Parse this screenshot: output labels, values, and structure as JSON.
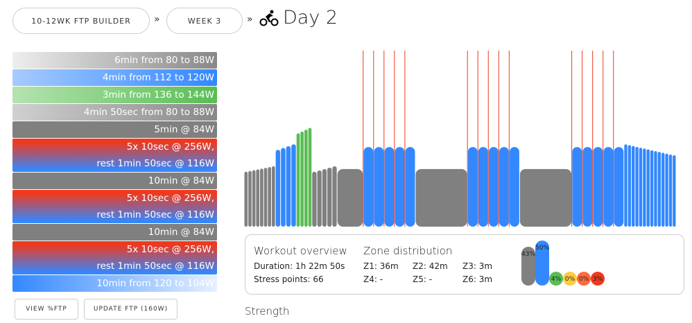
{
  "breadcrumb": {
    "plan": "10-12WK FTP BUILDER",
    "week": "WEEK 3",
    "separator": "»",
    "day": "Day 2"
  },
  "intervals": [
    {
      "lines": [
        "6min from 80 to 88W"
      ],
      "bg": "linear-gradient(90deg,#eeeeee,#888888)"
    },
    {
      "lines": [
        "4min from 112 to 120W"
      ],
      "bg": "linear-gradient(90deg,#a6cbff,#3388ff)"
    },
    {
      "lines": [
        "3min from 136 to 144W"
      ],
      "bg": "linear-gradient(90deg,#b4e3b0,#59bd54)"
    },
    {
      "lines": [
        "4min 50sec from 80 to 88W"
      ],
      "bg": "linear-gradient(90deg,#d0d0d0,#888888)"
    },
    {
      "lines": [
        "5min @ 84W"
      ],
      "bg": "#808080"
    },
    {
      "lines": [
        "5x 10sec @ 256W,",
        "rest 1min 50sec @ 116W"
      ],
      "bg": "linear-gradient(180deg,#f0391c 10%,#3388ff 95%)"
    },
    {
      "lines": [
        "10min @ 84W"
      ],
      "bg": "#808080"
    },
    {
      "lines": [
        "5x 10sec @ 256W,",
        "rest 1min 50sec @ 116W"
      ],
      "bg": "linear-gradient(180deg,#f0391c 10%,#3388ff 95%)"
    },
    {
      "lines": [
        "10min @ 84W"
      ],
      "bg": "#808080"
    },
    {
      "lines": [
        "5x 10sec @ 256W,",
        "rest 1min 50sec @ 116W"
      ],
      "bg": "linear-gradient(180deg,#f0391c 10%,#3388ff 95%)"
    },
    {
      "lines": [
        "10min from 120 to 104W"
      ],
      "bg": "linear-gradient(90deg,#3388ff,#e6f0ff)"
    }
  ],
  "buttons": {
    "view": "VIEW %FTP",
    "update": "UPDATE FTP (160W)"
  },
  "overview": {
    "title": "Workout overview",
    "duration": "Duration: 1h 22m 50s",
    "stress": "Stress points: 66"
  },
  "zones": {
    "title": "Zone distribution",
    "items": [
      "Z1: 36m",
      "Z2: 42m",
      "Z3: 3m",
      "Z4: -",
      "Z5: -",
      "Z6: 3m"
    ],
    "pct": [
      {
        "label": "43%",
        "value": 43,
        "color": "#808080"
      },
      {
        "label": "50%",
        "value": 50,
        "color": "#3388ff"
      },
      {
        "label": "4%",
        "value": 4,
        "color": "#59bd54"
      },
      {
        "label": "0%",
        "value": 0,
        "color": "#ffcc3f"
      },
      {
        "label": "0%",
        "value": 0,
        "color": "#ff6a3d"
      },
      {
        "label": "3%",
        "value": 3,
        "color": "#f0391c"
      }
    ]
  },
  "section": "Strength",
  "colors": {
    "z1": "#808080",
    "z2": "#3388ff",
    "z3": "#59bd54",
    "z6": "#f0391c"
  },
  "chart_data": {
    "type": "bar",
    "ftp": 160,
    "segments": [
      {
        "dur": 360,
        "from": 80,
        "to": 88,
        "steps": 8
      },
      {
        "dur": 240,
        "from": 112,
        "to": 120,
        "steps": 4
      },
      {
        "dur": 180,
        "from": 136,
        "to": 144,
        "steps": 4
      },
      {
        "dur": 290,
        "from": 80,
        "to": 88,
        "steps": 5
      },
      {
        "dur": 300,
        "from": 84,
        "to": 84
      },
      {
        "repeat": 5,
        "on": {
          "dur": 10,
          "w": 256
        },
        "off": {
          "dur": 110,
          "w": 116
        }
      },
      {
        "dur": 600,
        "from": 84,
        "to": 84
      },
      {
        "repeat": 5,
        "on": {
          "dur": 10,
          "w": 256
        },
        "off": {
          "dur": 110,
          "w": 116
        }
      },
      {
        "dur": 600,
        "from": 84,
        "to": 84
      },
      {
        "repeat": 5,
        "on": {
          "dur": 10,
          "w": 256
        },
        "off": {
          "dur": 110,
          "w": 116
        }
      },
      {
        "dur": 600,
        "from": 120,
        "to": 104,
        "steps": 14
      }
    ]
  }
}
